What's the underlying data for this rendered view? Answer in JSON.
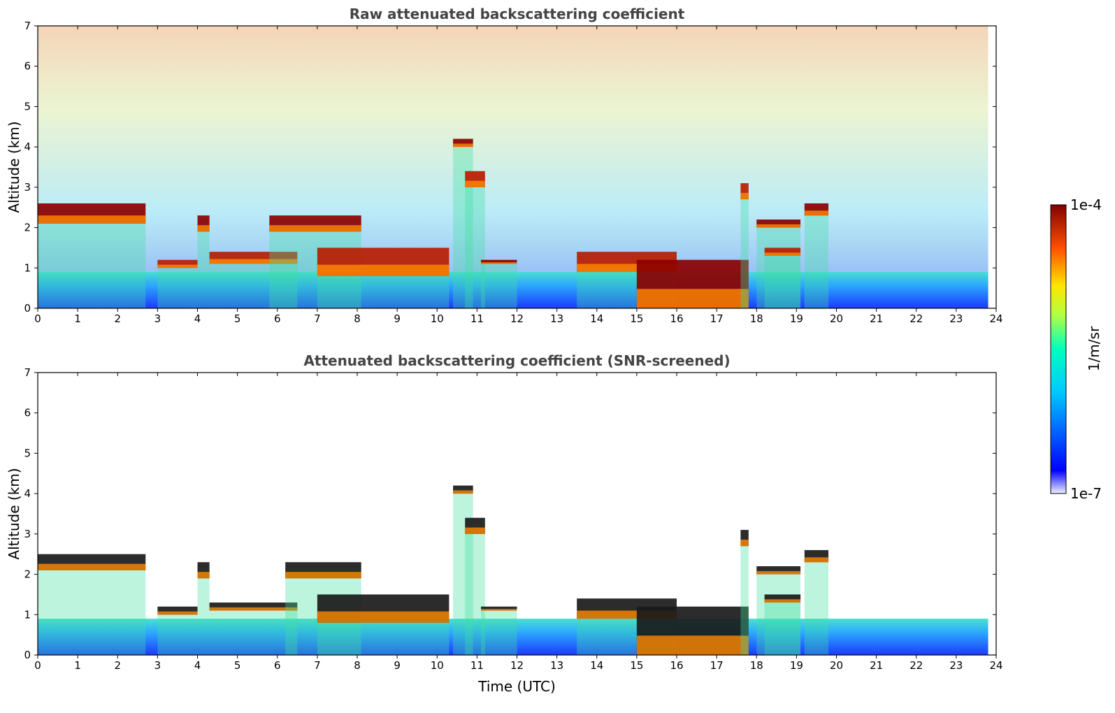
{
  "chart_data": [
    {
      "type": "heatmap",
      "title": "Raw attenuated backscattering coefficient",
      "xlabel": "",
      "ylabel": "Altitude (km)",
      "xlim": [
        0,
        24
      ],
      "ylim": [
        0,
        7
      ],
      "x_ticks": [
        "0",
        "1",
        "2",
        "3",
        "4",
        "5",
        "6",
        "7",
        "8",
        "9",
        "10",
        "11",
        "12",
        "13",
        "14",
        "15",
        "16",
        "17",
        "18",
        "19",
        "20",
        "21",
        "22",
        "23",
        "24"
      ],
      "y_ticks": [
        "0",
        "1",
        "2",
        "3",
        "4",
        "5",
        "6",
        "7"
      ],
      "data_end_time": 23.8,
      "screened": false,
      "layers": [
        {
          "t0": 0.0,
          "t1": 2.7,
          "z0": 2.1,
          "z1": 2.6
        },
        {
          "t0": 3.0,
          "t1": 4.0,
          "z0": 1.0,
          "z1": 1.2
        },
        {
          "t0": 4.0,
          "t1": 4.3,
          "z0": 1.9,
          "z1": 2.3
        },
        {
          "t0": 4.3,
          "t1": 6.5,
          "z0": 1.1,
          "z1": 1.4
        },
        {
          "t0": 5.8,
          "t1": 8.1,
          "z0": 1.9,
          "z1": 2.3
        },
        {
          "t0": 7.0,
          "t1": 10.3,
          "z0": 0.8,
          "z1": 1.5
        },
        {
          "t0": 10.4,
          "t1": 10.9,
          "z0": 4.0,
          "z1": 4.2
        },
        {
          "t0": 10.7,
          "t1": 11.2,
          "z0": 3.0,
          "z1": 3.4
        },
        {
          "t0": 11.1,
          "t1": 12.0,
          "z0": 1.1,
          "z1": 1.2
        },
        {
          "t0": 13.5,
          "t1": 16.0,
          "z0": 0.9,
          "z1": 1.4
        },
        {
          "t0": 15.0,
          "t1": 17.8,
          "z0": 0.0,
          "z1": 1.2
        },
        {
          "t0": 17.6,
          "t1": 17.8,
          "z0": 2.7,
          "z1": 3.1
        },
        {
          "t0": 18.0,
          "t1": 19.1,
          "z0": 2.0,
          "z1": 2.2
        },
        {
          "t0": 18.2,
          "t1": 19.1,
          "z0": 1.3,
          "z1": 1.5
        },
        {
          "t0": 19.2,
          "t1": 19.8,
          "z0": 2.3,
          "z1": 2.6
        }
      ]
    },
    {
      "type": "heatmap",
      "title": "Attenuated backscattering coefficient (SNR-screened)",
      "xlabel": "Time (UTC)",
      "ylabel": "Altitude (km)",
      "xlim": [
        0,
        24
      ],
      "ylim": [
        0,
        7
      ],
      "x_ticks": [
        "0",
        "1",
        "2",
        "3",
        "4",
        "5",
        "6",
        "7",
        "8",
        "9",
        "10",
        "11",
        "12",
        "13",
        "14",
        "15",
        "16",
        "17",
        "18",
        "19",
        "20",
        "21",
        "22",
        "23",
        "24"
      ],
      "y_ticks": [
        "0",
        "1",
        "2",
        "3",
        "4",
        "5",
        "6",
        "7"
      ],
      "data_end_time": 23.8,
      "screened": true,
      "layers": [
        {
          "t0": 0.0,
          "t1": 2.7,
          "z0": 2.1,
          "z1": 2.5
        },
        {
          "t0": 3.0,
          "t1": 4.0,
          "z0": 1.0,
          "z1": 1.2
        },
        {
          "t0": 4.0,
          "t1": 4.3,
          "z0": 1.9,
          "z1": 2.3
        },
        {
          "t0": 4.3,
          "t1": 6.5,
          "z0": 1.1,
          "z1": 1.3
        },
        {
          "t0": 6.2,
          "t1": 8.1,
          "z0": 1.9,
          "z1": 2.3
        },
        {
          "t0": 7.0,
          "t1": 10.3,
          "z0": 0.8,
          "z1": 1.5
        },
        {
          "t0": 10.4,
          "t1": 10.9,
          "z0": 4.0,
          "z1": 4.2
        },
        {
          "t0": 10.7,
          "t1": 11.2,
          "z0": 3.0,
          "z1": 3.4
        },
        {
          "t0": 11.1,
          "t1": 12.0,
          "z0": 1.1,
          "z1": 1.2
        },
        {
          "t0": 13.5,
          "t1": 16.0,
          "z0": 0.9,
          "z1": 1.4
        },
        {
          "t0": 15.0,
          "t1": 17.8,
          "z0": 0.0,
          "z1": 1.2
        },
        {
          "t0": 17.6,
          "t1": 17.8,
          "z0": 2.7,
          "z1": 3.1
        },
        {
          "t0": 18.0,
          "t1": 19.1,
          "z0": 2.0,
          "z1": 2.2
        },
        {
          "t0": 18.2,
          "t1": 19.1,
          "z0": 1.3,
          "z1": 1.5
        },
        {
          "t0": 19.2,
          "t1": 19.8,
          "z0": 2.3,
          "z1": 2.6
        }
      ]
    }
  ],
  "colorbar": {
    "label": "1/m/sr",
    "max_label": "1e-4",
    "min_label": "1e-7",
    "range": [
      1e-07,
      0.0001
    ],
    "scale": "log",
    "colormap": "jet"
  }
}
